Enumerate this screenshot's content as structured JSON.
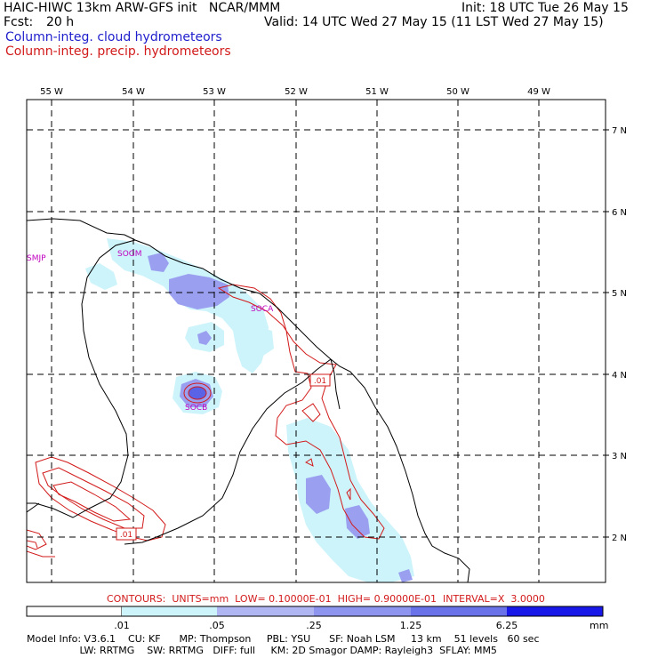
{
  "header": {
    "title": "HAIC-HIWC 13km ARW-GFS init   NCAR/MMM",
    "init": "Init: 18 UTC Tue 26 May 15",
    "fcst_label": "Fcst:",
    "fcst_value": "20 h",
    "valid": "Valid: 14 UTC Wed 27 May 15 (11 LST Wed 27 May 15)",
    "field1": "Column-integ. cloud hydrometeors",
    "field2": "Column-integ. precip. hydrometeors"
  },
  "map": {
    "lon_labels": [
      "55 W",
      "54 W",
      "53 W",
      "52 W",
      "51 W",
      "50 W",
      "49 W"
    ],
    "lat_labels": [
      "7 N",
      "6 N",
      "5 N",
      "4 N",
      "3 N",
      "2 N"
    ],
    "stations": [
      "SMJP",
      "SOGM",
      "SOCA",
      "SOCB"
    ],
    "contour_labels": [
      ".01",
      ".01"
    ],
    "colors": {
      "cloud_light": "#cdf4fb",
      "cloud_mid": "#9a9ff0",
      "cloud_dark": "#5a62e6",
      "precip_contour": "#d21a1a",
      "coast": "#000000",
      "station": "#c000c0"
    }
  },
  "contours": "CONTOURS:  UNITS=mm  LOW= 0.10000E-01  HIGH= 0.90000E-01  INTERVAL=X  3.0000",
  "legend": {
    "labels": [
      ".01",
      ".05",
      ".25",
      "1.25",
      "6.25"
    ],
    "unit": "mm",
    "colors": [
      "#ffffff",
      "#cdf4fb",
      "#b0b6f2",
      "#8d95ee",
      "#6a72ea",
      "#1818e8"
    ]
  },
  "footer": {
    "line1": "Model Info: V3.6.1    CU: KF      MP: Thompson     PBL: YSU      SF: Noah LSM     13 km    51 levels   60 sec",
    "line2": "                 LW: RRTMG    SW: RRTMG   DIFF: full     KM: 2D Smagor DAMP: Rayleigh3  SFLAY: MM5"
  }
}
